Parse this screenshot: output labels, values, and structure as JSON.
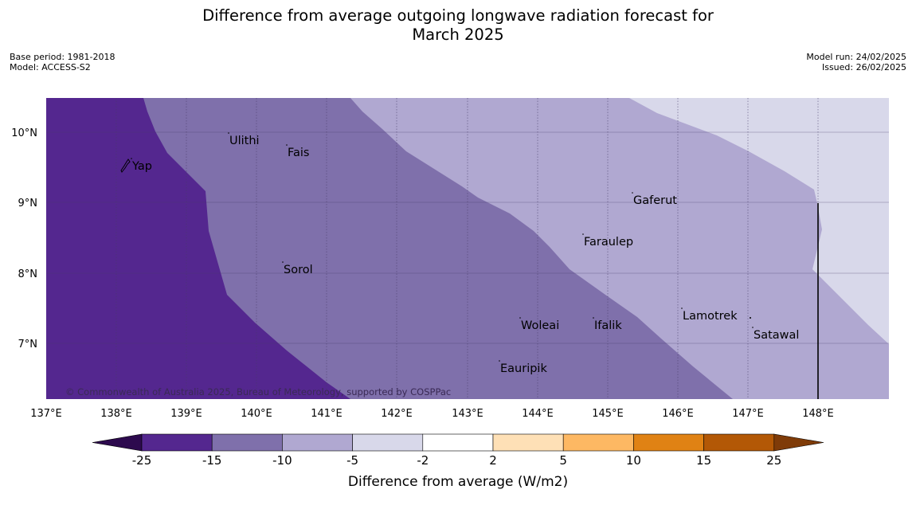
{
  "title_line1": "Difference from average outgoing longwave radiation forecast for",
  "title_line2": "March 2025",
  "meta_left": [
    "Base period: 1981-2018",
    "Model: ACCESS-S2"
  ],
  "meta_right": [
    "Model run: 24/02/2025",
    "Issued: 26/02/2025"
  ],
  "copyright": "© Commonwealth of Australia 2025, Bureau of Meteorology, supported by COSPPac",
  "lon_labels": [
    "137°E",
    "138°E",
    "139°E",
    "140°E",
    "141°E",
    "142°E",
    "143°E",
    "144°E",
    "145°E",
    "146°E",
    "147°E",
    "148°E"
  ],
  "lat_labels": [
    "10°N",
    "9°N",
    "8°N",
    "7°N"
  ],
  "places": [
    {
      "name": "Yap"
    },
    {
      "name": "Ulithi"
    },
    {
      "name": "Fais"
    },
    {
      "name": "Gaferut"
    },
    {
      "name": "Faraulep"
    },
    {
      "name": "Sorol"
    },
    {
      "name": "Lamotrek"
    },
    {
      "name": "Woleai"
    },
    {
      "name": "Ifalik"
    },
    {
      "name": "Satawal"
    },
    {
      "name": "Eauripik"
    }
  ],
  "colorbar": {
    "ticks": [
      "-25",
      "-15",
      "-10",
      "-5",
      "-2",
      "2",
      "5",
      "10",
      "15",
      "25"
    ],
    "label": "Difference from average (W/m2)",
    "colors": {
      "under": "#2d0a4e",
      "bins": [
        "#54278f",
        "#7f70ab",
        "#b0a8d1",
        "#d8d8ea",
        "#ffffff",
        "#fee0b6",
        "#fdb863",
        "#e08214",
        "#b35806"
      ],
      "over": "#7f3b08"
    }
  },
  "map_colors": {
    "band_minus25": "#54278f",
    "band_minus15": "#7f70ab",
    "band_minus10": "#b0a8d1",
    "band_minus5": "#d8d8ea"
  }
}
